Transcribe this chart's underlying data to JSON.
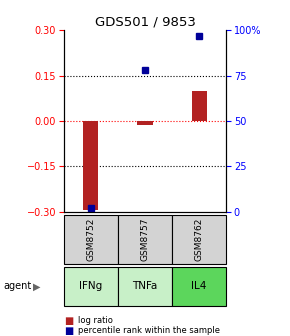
{
  "title": "GDS501 / 9853",
  "samples": [
    "GSM8752",
    "GSM8757",
    "GSM8762"
  ],
  "agents": [
    "IFNg",
    "TNFa",
    "IL4"
  ],
  "agent_colors": [
    "#c8f0c8",
    "#c8f0c8",
    "#5cd65c"
  ],
  "log_ratios": [
    -0.295,
    -0.012,
    0.1
  ],
  "percentile_ranks": [
    2.0,
    78.0,
    97.0
  ],
  "ylim_left": [
    -0.3,
    0.3
  ],
  "ylim_right": [
    0,
    100
  ],
  "left_yticks": [
    -0.3,
    -0.15,
    0.0,
    0.15,
    0.3
  ],
  "right_yticks": [
    0,
    25,
    50,
    75,
    100
  ],
  "right_yticklabels": [
    "0",
    "25",
    "50",
    "75",
    "100%"
  ],
  "hlines_dotted": [
    -0.15,
    0.15
  ],
  "hline_red": 0.0,
  "bar_color": "#B22222",
  "dot_color": "#000099",
  "sample_box_color": "#D3D3D3",
  "legend_bar_color": "#B22222",
  "legend_dot_color": "#000099"
}
